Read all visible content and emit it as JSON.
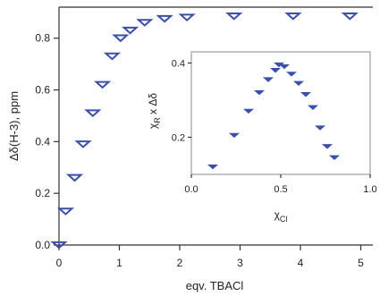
{
  "chart_data": [
    {
      "type": "scatter",
      "xlabel": "eqv. TBACl",
      "ylabel": "Δδ(H-3), ppm",
      "xlim": [
        0,
        5.2
      ],
      "ylim": [
        0,
        0.92
      ],
      "xticks": [
        "0",
        "1",
        "2",
        "3",
        "4",
        "5"
      ],
      "yticks": [
        "0.0",
        "0.2",
        "0.4",
        "0.6",
        "0.8"
      ],
      "marker": "open-triangle-down",
      "color": "#3b4fa8",
      "series": [
        {
          "x": [
            0.0,
            0.11,
            0.26,
            0.4,
            0.56,
            0.72,
            0.88,
            1.02,
            1.18,
            1.42,
            1.75,
            2.12,
            2.9,
            3.88,
            4.82
          ],
          "y": [
            0.0,
            0.13,
            0.26,
            0.39,
            0.51,
            0.62,
            0.73,
            0.8,
            0.83,
            0.86,
            0.875,
            0.88,
            0.885,
            0.885,
            0.885
          ]
        }
      ]
    },
    {
      "type": "scatter",
      "xlabel": "χCl",
      "ylabel": "χR x Δδ",
      "xlim": [
        0.0,
        1.0
      ],
      "ylim": [
        0.1,
        0.43
      ],
      "xticks": [
        "0.0",
        "0.5",
        "1.0"
      ],
      "yticks": [
        "0.2",
        "0.4"
      ],
      "marker": "filled-triangle-down",
      "color": "#3b4fa8",
      "series": [
        {
          "x": [
            0.12,
            0.24,
            0.32,
            0.38,
            0.43,
            0.47,
            0.49,
            0.52,
            0.56,
            0.6,
            0.64,
            0.68,
            0.72,
            0.76,
            0.8
          ],
          "y": [
            0.12,
            0.205,
            0.27,
            0.32,
            0.355,
            0.38,
            0.395,
            0.39,
            0.37,
            0.345,
            0.315,
            0.28,
            0.225,
            0.175,
            0.145
          ]
        }
      ]
    }
  ]
}
